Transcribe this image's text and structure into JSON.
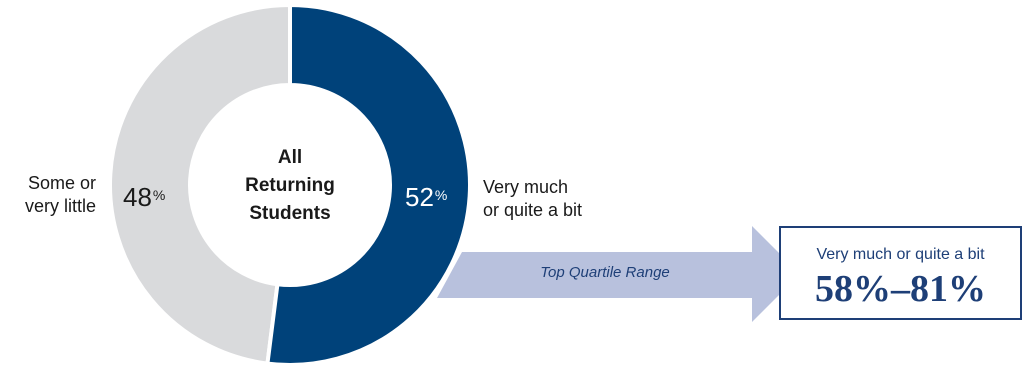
{
  "chart_data": {
    "type": "pie",
    "categories": [
      "Very much or quite a bit",
      "Some or very little"
    ],
    "values": [
      52,
      48
    ],
    "value_suffix": "%",
    "center_label": [
      "All",
      "Returning",
      "Students"
    ],
    "labels": {
      "right": [
        "Very much",
        "or quite a bit"
      ],
      "left": [
        "Some or",
        "very little"
      ]
    },
    "colors": {
      "primary": "#00427a",
      "secondary": "#d9dadc",
      "arrow": "#b8c1dd",
      "accent": "#1e3f77"
    },
    "arrow_label": "Top Quartile Range",
    "range": {
      "caption": "Very much or quite a bit",
      "value": "58%–81%"
    }
  }
}
